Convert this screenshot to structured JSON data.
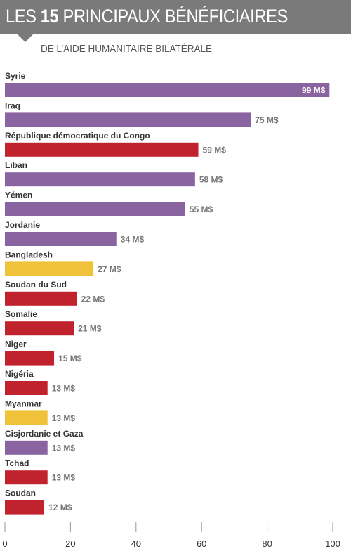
{
  "header": {
    "title_prefix": "LES ",
    "title_number": "15",
    "title_suffix": " PRINCIPAUX BÉNÉFICIAIRES",
    "subtitle": "DE L’AIDE HUMANITAIRE BILATÉRALE"
  },
  "colors": {
    "purple": "#8a64a0",
    "red": "#c0222e",
    "yellow": "#efc23a",
    "banner": "#7a7a7a"
  },
  "chart_data": {
    "type": "bar",
    "orientation": "horizontal",
    "title": "LES 15 PRINCIPAUX BÉNÉFICIAIRES",
    "subtitle": "DE L’AIDE HUMANITAIRE BILATÉRALE",
    "xlabel": "",
    "ylabel": "",
    "xlim": [
      0,
      100
    ],
    "xticks": [
      0,
      20,
      40,
      60,
      80,
      100
    ],
    "unit": "M$",
    "grid": false,
    "legend": "none",
    "categories": [
      "Syrie",
      "Iraq",
      "République démocratique du Congo",
      "Liban",
      "Yémen",
      "Jordanie",
      "Bangladesh",
      "Soudan du Sud",
      "Somalie",
      "Niger",
      "Nigéria",
      "Myanmar",
      "Cisjordanie et Gaza",
      "Tchad",
      "Soudan"
    ],
    "values": [
      99,
      75,
      59,
      58,
      55,
      34,
      27,
      22,
      21,
      15,
      13,
      13,
      13,
      13,
      12
    ],
    "labels": [
      "99 M$",
      "75 M$",
      "59 M$",
      "58 M$",
      "55 M$",
      "34 M$",
      "27 M$",
      "22 M$",
      "21 M$",
      "15 M$",
      "13 M$",
      "13 M$",
      "13 M$",
      "13 M$",
      "12 M$"
    ],
    "bar_colors": [
      "#8a64a0",
      "#8a64a0",
      "#c0222e",
      "#8a64a0",
      "#8a64a0",
      "#8a64a0",
      "#efc23a",
      "#c0222e",
      "#c0222e",
      "#c0222e",
      "#c0222e",
      "#efc23a",
      "#8a64a0",
      "#c0222e",
      "#c0222e"
    ]
  }
}
